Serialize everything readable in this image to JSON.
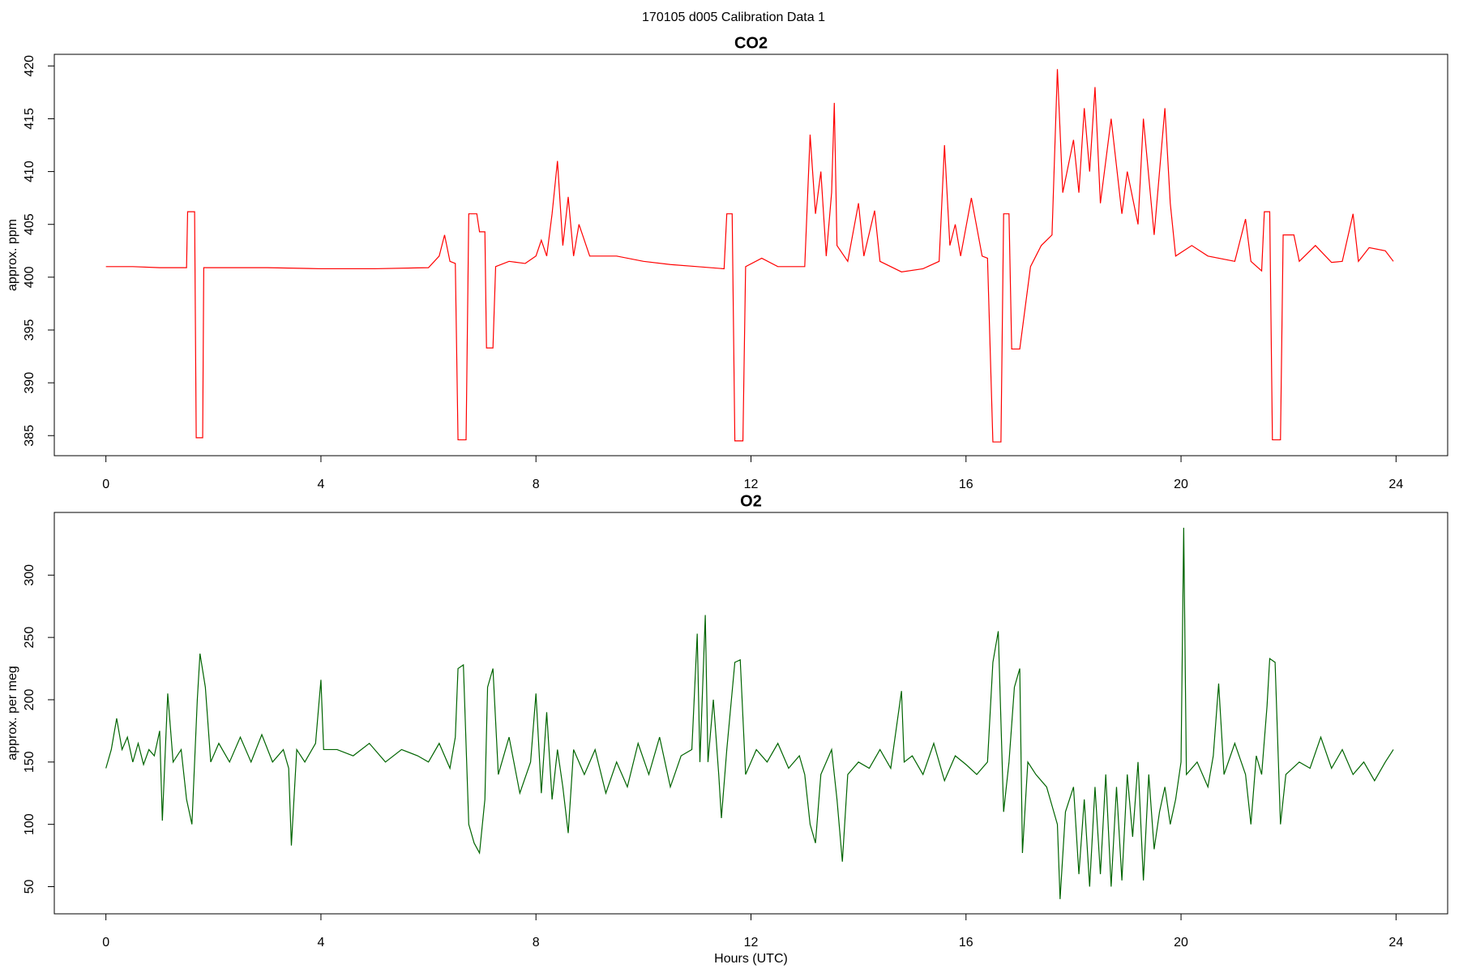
{
  "title": "170105   d005   Calibration Data 1",
  "chart_data": [
    {
      "type": "line",
      "title": "CO2",
      "ylabel": "approx. ppm",
      "color": "#ff0000",
      "xlim": [
        -0.96,
        24.96
      ],
      "xticks": [
        0,
        4,
        8,
        12,
        16,
        20,
        24
      ],
      "ylim": [
        383.1,
        421.1
      ],
      "yticks": [
        385,
        390,
        395,
        400,
        405,
        410,
        415,
        420
      ],
      "x": [
        0,
        0.5,
        1.0,
        1.5,
        1.52,
        1.65,
        1.68,
        1.8,
        1.82,
        3,
        4,
        5,
        6,
        6.2,
        6.3,
        6.4,
        6.5,
        6.55,
        6.7,
        6.75,
        6.9,
        6.95,
        7.05,
        7.08,
        7.2,
        7.25,
        7.5,
        7.8,
        8.0,
        8.1,
        8.2,
        8.3,
        8.4,
        8.5,
        8.6,
        8.7,
        8.8,
        9,
        9.5,
        10,
        10.5,
        11,
        11.5,
        11.55,
        11.65,
        11.7,
        11.85,
        11.9,
        12.2,
        12.5,
        13,
        13.1,
        13.2,
        13.3,
        13.4,
        13.5,
        13.55,
        13.6,
        13.8,
        14,
        14.1,
        14.3,
        14.4,
        14.8,
        15.2,
        15.5,
        15.6,
        15.7,
        15.8,
        15.9,
        16.1,
        16.3,
        16.4,
        16.5,
        16.65,
        16.7,
        16.8,
        16.85,
        17,
        17.2,
        17.4,
        17.6,
        17.7,
        17.8,
        18,
        18.1,
        18.2,
        18.3,
        18.4,
        18.5,
        18.7,
        18.9,
        19,
        19.2,
        19.3,
        19.5,
        19.7,
        19.8,
        19.9,
        20.2,
        20.5,
        21,
        21.2,
        21.3,
        21.5,
        21.55,
        21.65,
        21.7,
        21.85,
        21.9,
        22.1,
        22.2,
        22.5,
        22.8,
        23,
        23.2,
        23.3,
        23.5,
        23.8,
        23.95
      ],
      "values": [
        401,
        401,
        400.9,
        400.9,
        406.2,
        406.2,
        384.8,
        384.8,
        400.9,
        400.9,
        400.8,
        400.8,
        400.9,
        402,
        404,
        401.5,
        401.3,
        384.6,
        384.6,
        406,
        406,
        404.3,
        404.3,
        393.3,
        393.3,
        401,
        401.5,
        401.3,
        402,
        403.5,
        402,
        406,
        411,
        403,
        407.6,
        402,
        405,
        402,
        402,
        401.5,
        401.2,
        401,
        400.8,
        406,
        406,
        384.5,
        384.5,
        401,
        401.8,
        401,
        401,
        413.5,
        406,
        410,
        402,
        408,
        416.5,
        403,
        401.5,
        407,
        402,
        406.3,
        401.5,
        400.5,
        400.8,
        401.5,
        412.5,
        403,
        405,
        402,
        407.5,
        402,
        401.8,
        384.4,
        384.4,
        406,
        406,
        393.2,
        393.2,
        401,
        403,
        404,
        419.7,
        408,
        413,
        408,
        416,
        410,
        418,
        407,
        415,
        406,
        410,
        405,
        415,
        404,
        416,
        407,
        402,
        403,
        402,
        401.5,
        405.5,
        401.5,
        400.6,
        406.2,
        406.2,
        384.6,
        384.6,
        404,
        404,
        401.5,
        403,
        401.4,
        401.5,
        406,
        401.5,
        402.8,
        402.5,
        401.5
      ]
    },
    {
      "type": "line",
      "title": "O2",
      "ylabel": "approx. per meg",
      "xlabel": "Hours (UTC)",
      "color": "#006400",
      "xlim": [
        -0.96,
        24.96
      ],
      "xticks": [
        0,
        4,
        8,
        12,
        16,
        20,
        24
      ],
      "ylim": [
        28.2,
        350.3
      ],
      "yticks": [
        50,
        100,
        150,
        200,
        250,
        300
      ],
      "x": [
        0,
        0.1,
        0.2,
        0.3,
        0.4,
        0.5,
        0.6,
        0.7,
        0.8,
        0.9,
        1.0,
        1.05,
        1.15,
        1.25,
        1.4,
        1.5,
        1.6,
        1.7,
        1.75,
        1.85,
        1.95,
        2.1,
        2.3,
        2.5,
        2.7,
        2.9,
        3.1,
        3.3,
        3.4,
        3.45,
        3.55,
        3.7,
        3.9,
        4.0,
        4.05,
        4.3,
        4.6,
        4.9,
        5.2,
        5.5,
        5.8,
        6.0,
        6.2,
        6.4,
        6.5,
        6.55,
        6.65,
        6.75,
        6.85,
        6.95,
        7.05,
        7.1,
        7.2,
        7.3,
        7.5,
        7.7,
        7.9,
        8.0,
        8.1,
        8.2,
        8.3,
        8.4,
        8.5,
        8.6,
        8.7,
        8.9,
        9.1,
        9.3,
        9.5,
        9.7,
        9.9,
        10.1,
        10.3,
        10.5,
        10.7,
        10.9,
        11.0,
        11.05,
        11.15,
        11.2,
        11.3,
        11.4,
        11.45,
        11.55,
        11.7,
        11.8,
        11.9,
        12.1,
        12.3,
        12.5,
        12.7,
        12.9,
        13.0,
        13.1,
        13.2,
        13.3,
        13.5,
        13.6,
        13.7,
        13.8,
        14.0,
        14.2,
        14.4,
        14.6,
        14.8,
        14.85,
        15.0,
        15.2,
        15.4,
        15.6,
        15.8,
        16.0,
        16.2,
        16.4,
        16.5,
        16.6,
        16.7,
        16.8,
        16.9,
        17.0,
        17.05,
        17.15,
        17.3,
        17.5,
        17.6,
        17.7,
        17.75,
        17.85,
        18.0,
        18.1,
        18.2,
        18.3,
        18.4,
        18.5,
        18.6,
        18.7,
        18.8,
        18.9,
        19.0,
        19.1,
        19.2,
        19.3,
        19.4,
        19.5,
        19.6,
        19.7,
        19.8,
        19.9,
        20.0,
        20.05,
        20.1,
        20.3,
        20.5,
        20.6,
        20.7,
        20.8,
        21.0,
        21.2,
        21.3,
        21.4,
        21.5,
        21.6,
        21.65,
        21.75,
        21.85,
        21.95,
        22.2,
        22.4,
        22.6,
        22.8,
        23.0,
        23.2,
        23.4,
        23.6,
        23.8,
        23.95
      ],
      "values": [
        145,
        160,
        185,
        160,
        170,
        150,
        165,
        148,
        160,
        155,
        175,
        103,
        205,
        150,
        160,
        120,
        100,
        200,
        237,
        210,
        150,
        165,
        150,
        170,
        150,
        172,
        150,
        160,
        145,
        83,
        160,
        150,
        165,
        216,
        160,
        160,
        155,
        165,
        150,
        160,
        155,
        150,
        165,
        145,
        170,
        225,
        228,
        100,
        85,
        77,
        120,
        210,
        225,
        140,
        170,
        125,
        150,
        205,
        125,
        190,
        120,
        160,
        130,
        93,
        160,
        140,
        160,
        125,
        150,
        130,
        165,
        140,
        170,
        130,
        155,
        160,
        253,
        150,
        268,
        150,
        200,
        140,
        105,
        160,
        230,
        232,
        140,
        160,
        150,
        165,
        145,
        155,
        140,
        100,
        85,
        140,
        160,
        120,
        70,
        140,
        150,
        145,
        160,
        145,
        207,
        150,
        155,
        140,
        165,
        135,
        155,
        148,
        140,
        150,
        230,
        255,
        110,
        150,
        210,
        225,
        77,
        150,
        140,
        130,
        115,
        100,
        40,
        110,
        130,
        60,
        120,
        50,
        130,
        60,
        140,
        50,
        130,
        55,
        140,
        90,
        150,
        55,
        140,
        80,
        110,
        130,
        100,
        120,
        150,
        338,
        140,
        150,
        130,
        155,
        213,
        140,
        165,
        140,
        100,
        155,
        140,
        195,
        233,
        230,
        100,
        140,
        150,
        145,
        170,
        145,
        160,
        140,
        150,
        135,
        150,
        160
      ]
    }
  ]
}
